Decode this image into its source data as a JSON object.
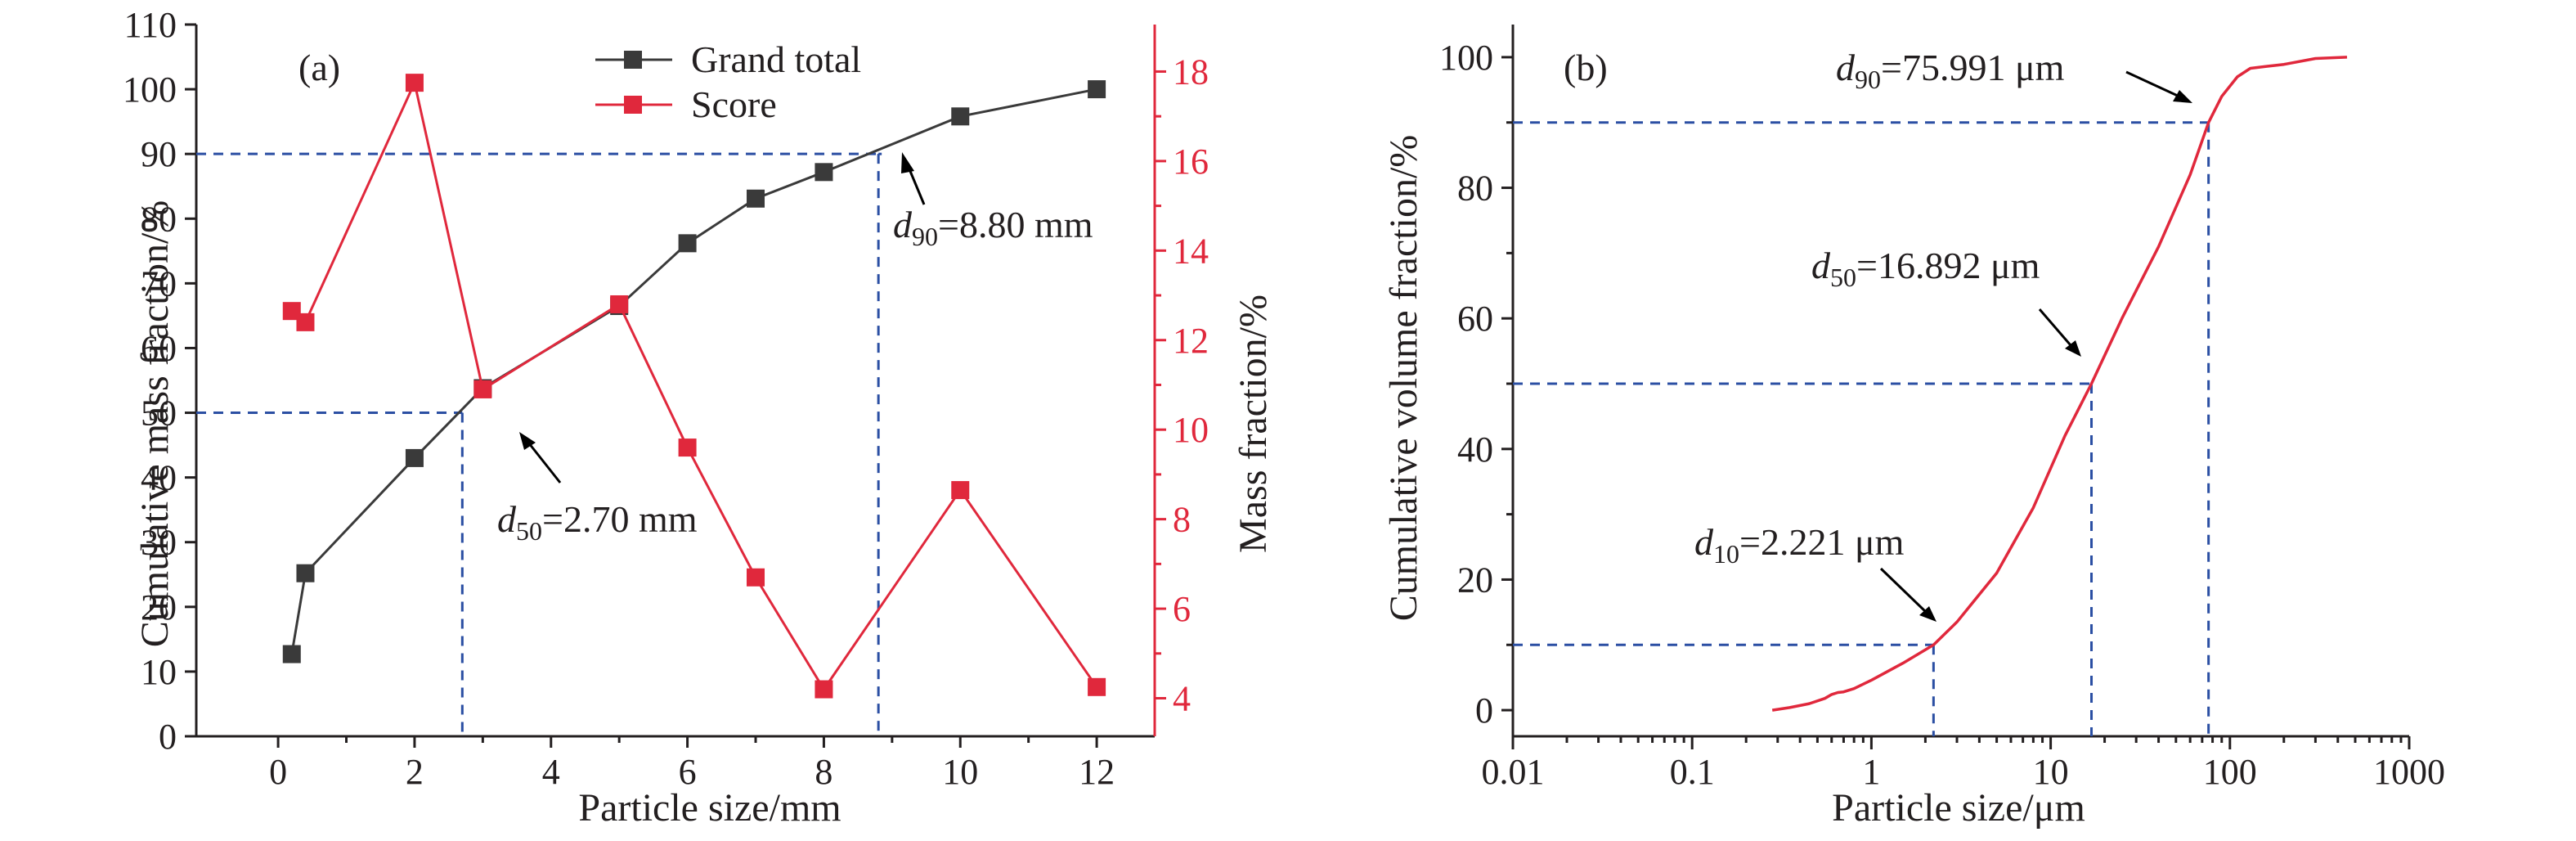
{
  "chart_data": [
    {
      "type": "line",
      "panel_label": "(a)",
      "xlabel": "Particle size/mm",
      "ylabel": "Cumulative mass fraction/%",
      "ylabel_right": "Mass fraction/%",
      "xlim": [
        -1.2,
        12.85
      ],
      "ylim": [
        0,
        110
      ],
      "ylim_right": [
        3.15,
        19.05
      ],
      "xticks": [
        0,
        2,
        4,
        6,
        8,
        10,
        12
      ],
      "yticks": [
        0,
        10,
        20,
        30,
        40,
        50,
        60,
        70,
        80,
        90,
        100,
        110
      ],
      "yticks_right": [
        4,
        6,
        8,
        10,
        12,
        14,
        16,
        18
      ],
      "legend_position": "top-center",
      "grid": false,
      "colors": {
        "grand_total": "#3a3a3a",
        "score": "#e0283c",
        "reference": "#2b4fa3"
      },
      "series": [
        {
          "name": "Grand total",
          "axis": "left",
          "x": [
            0.2,
            0.4,
            2,
            3,
            5,
            6,
            7,
            8,
            10,
            12
          ],
          "y": [
            12.7,
            25.2,
            43.0,
            53.8,
            66.5,
            76.2,
            83.1,
            87.2,
            95.8,
            100.0
          ]
        },
        {
          "name": "Score",
          "axis": "right",
          "x": [
            0.2,
            0.4,
            2,
            3,
            5,
            6,
            7,
            8,
            10,
            12
          ],
          "y": [
            12.65,
            12.4,
            17.75,
            10.9,
            12.8,
            9.6,
            6.7,
            4.2,
            8.65,
            4.25
          ]
        }
      ],
      "reference_lines": [
        {
          "label_sub": "50",
          "label_text": "=2.70 mm",
          "x": 2.7,
          "y": 50
        },
        {
          "label_sub": "90",
          "label_text": "=8.80 mm",
          "x": 8.8,
          "y": 90
        }
      ]
    },
    {
      "type": "line",
      "panel_label": "(b)",
      "xlabel": "Particle size/μm",
      "ylabel": "Cumulative volume fraction/%",
      "xscale": "log",
      "xlim": [
        0.01,
        1000
      ],
      "ylim": [
        -4,
        105
      ],
      "xticks": [
        0.01,
        0.1,
        1,
        10,
        100,
        1000
      ],
      "xticklabels": [
        "0.01",
        "0.1",
        "1",
        "10",
        "100",
        "1000"
      ],
      "yticks": [
        0,
        20,
        40,
        60,
        80,
        100
      ],
      "grid": false,
      "colors": {
        "curve": "#e0283c",
        "reference": "#2b4fa3"
      },
      "series": [
        {
          "x": [
            0.28,
            0.35,
            0.45,
            0.55,
            0.6,
            0.65,
            0.7,
            0.8,
            1.0,
            1.5,
            2.221,
            3,
            5,
            8,
            12,
            16.892,
            25,
            40,
            60,
            75.991,
            90,
            110,
            130,
            160,
            200,
            300,
            450
          ],
          "y": [
            0,
            0.4,
            1.0,
            1.8,
            2.4,
            2.7,
            2.8,
            3.3,
            4.6,
            7.2,
            10,
            13.5,
            21,
            31,
            42,
            50,
            60,
            71,
            82,
            90,
            94,
            97,
            98.3,
            98.6,
            98.9,
            99.8,
            100
          ]
        }
      ],
      "reference_lines": [
        {
          "label_sub": "10",
          "label_text": "=2.221 μm",
          "x": 2.221,
          "y": 10
        },
        {
          "label_sub": "50",
          "label_text": "=16.892 μm",
          "x": 16.892,
          "y": 50
        },
        {
          "label_sub": "90",
          "label_text": "=75.991 μm",
          "x": 75.991,
          "y": 90
        }
      ]
    }
  ]
}
